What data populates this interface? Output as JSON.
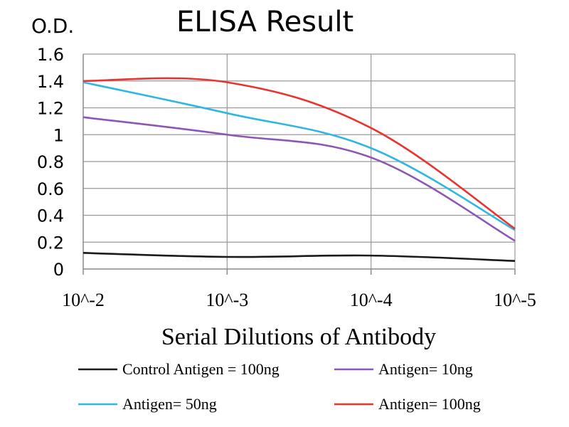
{
  "chart_data": {
    "type": "line",
    "title": "ELISA Result",
    "ylabel": "O.D.",
    "xlabel": "Serial Dilutions of Antibody",
    "x_ticks": [
      "10^-2",
      "10^-3",
      "10^-4",
      "10^-5"
    ],
    "ylim": [
      0,
      1.6
    ],
    "y_ticks": [
      "0",
      "0.2",
      "0.4",
      "0.6",
      "0.8",
      "1",
      "1.2",
      "1.4",
      "1.6"
    ],
    "y_tick_values": [
      0,
      0.2,
      0.4,
      0.6,
      0.8,
      1.0,
      1.2,
      1.4,
      1.6
    ],
    "grid": true,
    "legend_position": "bottom",
    "series": [
      {
        "name": "Control Antigen = 100ng",
        "color": "#1a1a1a",
        "x": [
          0.01,
          0.001,
          0.0001,
          1e-05
        ],
        "values": [
          0.12,
          0.09,
          0.1,
          0.06
        ]
      },
      {
        "name": "Antigen= 10ng",
        "color": "#8e55b8",
        "x": [
          0.01,
          0.001,
          0.0001,
          1e-05
        ],
        "values": [
          1.13,
          1.0,
          0.83,
          0.21
        ]
      },
      {
        "name": "Antigen= 50ng",
        "color": "#2fb6e3",
        "x": [
          0.01,
          0.001,
          0.0001,
          1e-05
        ],
        "values": [
          1.39,
          1.16,
          0.9,
          0.29
        ]
      },
      {
        "name": "Antigen= 100ng",
        "color": "#e8332e",
        "x": [
          0.01,
          0.001,
          0.0001,
          1e-05
        ],
        "values": [
          1.4,
          1.39,
          1.05,
          0.3
        ]
      }
    ]
  }
}
